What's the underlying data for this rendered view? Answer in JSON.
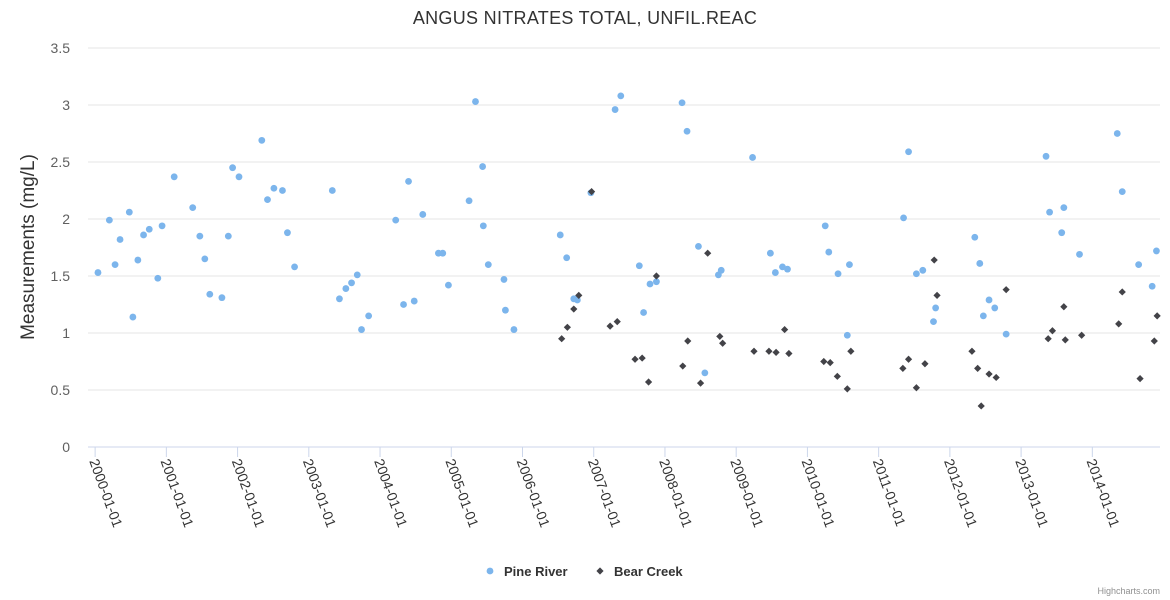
{
  "chart_data": {
    "type": "scatter",
    "title": "ANGUS NITRATES TOTAL, UNFIL.REAC",
    "ylabel": "Measurements (mg/L)",
    "xlabel": "",
    "ylim": [
      0,
      3.5
    ],
    "yticks": [
      "0",
      "0.5",
      "1",
      "1.5",
      "2",
      "2.5",
      "3",
      "3.5"
    ],
    "xlim": [
      1999.9,
      2014.95
    ],
    "xticks": [
      {
        "label": "2000-01-01",
        "x": 2000
      },
      {
        "label": "2001-01-01",
        "x": 2001
      },
      {
        "label": "2002-01-01",
        "x": 2002
      },
      {
        "label": "2003-01-01",
        "x": 2003
      },
      {
        "label": "2004-01-01",
        "x": 2004
      },
      {
        "label": "2005-01-01",
        "x": 2005
      },
      {
        "label": "2006-01-01",
        "x": 2006
      },
      {
        "label": "2007-01-01",
        "x": 2007
      },
      {
        "label": "2008-01-01",
        "x": 2008
      },
      {
        "label": "2009-01-01",
        "x": 2009
      },
      {
        "label": "2010-01-01",
        "x": 2010
      },
      {
        "label": "2011-01-01",
        "x": 2011
      },
      {
        "label": "2012-01-01",
        "x": 2012
      },
      {
        "label": "2013-01-01",
        "x": 2013
      },
      {
        "label": "2014-01-01",
        "x": 2014
      }
    ],
    "grid": true,
    "legend_position": "bottom-center",
    "series": [
      {
        "name": "Pine River",
        "color": "#7cb5ec",
        "marker": "circle",
        "points": [
          [
            2000.04,
            1.53
          ],
          [
            2000.2,
            1.99
          ],
          [
            2000.28,
            1.6
          ],
          [
            2000.35,
            1.82
          ],
          [
            2000.48,
            2.06
          ],
          [
            2000.53,
            1.14
          ],
          [
            2000.6,
            1.64
          ],
          [
            2000.68,
            1.86
          ],
          [
            2000.76,
            1.91
          ],
          [
            2000.88,
            1.48
          ],
          [
            2000.94,
            1.94
          ],
          [
            2001.11,
            2.37
          ],
          [
            2001.37,
            2.1
          ],
          [
            2001.47,
            1.85
          ],
          [
            2001.54,
            1.65
          ],
          [
            2001.61,
            1.34
          ],
          [
            2001.78,
            1.31
          ],
          [
            2001.87,
            1.85
          ],
          [
            2001.93,
            2.45
          ],
          [
            2002.02,
            2.37
          ],
          [
            2002.34,
            2.69
          ],
          [
            2002.42,
            2.17
          ],
          [
            2002.51,
            2.27
          ],
          [
            2002.63,
            2.25
          ],
          [
            2002.7,
            1.88
          ],
          [
            2002.8,
            1.58
          ],
          [
            2003.33,
            2.25
          ],
          [
            2003.43,
            1.3
          ],
          [
            2003.52,
            1.39
          ],
          [
            2003.6,
            1.44
          ],
          [
            2003.68,
            1.51
          ],
          [
            2003.74,
            1.03
          ],
          [
            2003.84,
            1.15
          ],
          [
            2004.22,
            1.99
          ],
          [
            2004.33,
            1.25
          ],
          [
            2004.4,
            2.33
          ],
          [
            2004.48,
            1.28
          ],
          [
            2004.6,
            2.04
          ],
          [
            2004.82,
            1.7
          ],
          [
            2004.88,
            1.7
          ],
          [
            2004.96,
            1.42
          ],
          [
            2005.25,
            2.16
          ],
          [
            2005.34,
            3.03
          ],
          [
            2005.44,
            2.46
          ],
          [
            2005.45,
            1.94
          ],
          [
            2005.52,
            1.6
          ],
          [
            2005.74,
            1.47
          ],
          [
            2005.76,
            1.2
          ],
          [
            2005.88,
            1.03
          ],
          [
            2006.53,
            1.86
          ],
          [
            2006.62,
            1.66
          ],
          [
            2006.72,
            1.3
          ],
          [
            2006.77,
            1.29
          ],
          [
            2006.96,
            2.23
          ],
          [
            2007.3,
            2.96
          ],
          [
            2007.38,
            3.08
          ],
          [
            2007.64,
            1.59
          ],
          [
            2007.7,
            1.18
          ],
          [
            2007.79,
            1.43
          ],
          [
            2007.88,
            1.45
          ],
          [
            2008.24,
            3.02
          ],
          [
            2008.31,
            2.77
          ],
          [
            2008.47,
            1.76
          ],
          [
            2008.56,
            0.65
          ],
          [
            2008.75,
            1.51
          ],
          [
            2008.79,
            1.55
          ],
          [
            2009.23,
            2.54
          ],
          [
            2009.48,
            1.7
          ],
          [
            2009.55,
            1.53
          ],
          [
            2009.65,
            1.58
          ],
          [
            2009.72,
            1.56
          ],
          [
            2010.25,
            1.94
          ],
          [
            2010.3,
            1.71
          ],
          [
            2010.43,
            1.52
          ],
          [
            2010.56,
            0.98
          ],
          [
            2010.59,
            1.6
          ],
          [
            2011.35,
            2.01
          ],
          [
            2011.42,
            2.59
          ],
          [
            2011.53,
            1.52
          ],
          [
            2011.62,
            1.55
          ],
          [
            2011.77,
            1.1
          ],
          [
            2011.8,
            1.22
          ],
          [
            2012.35,
            1.84
          ],
          [
            2012.42,
            1.61
          ],
          [
            2012.47,
            1.15
          ],
          [
            2012.55,
            1.29
          ],
          [
            2012.63,
            1.22
          ],
          [
            2012.79,
            0.99
          ],
          [
            2013.35,
            2.55
          ],
          [
            2013.4,
            2.06
          ],
          [
            2013.57,
            1.88
          ],
          [
            2013.6,
            2.1
          ],
          [
            2013.82,
            1.69
          ],
          [
            2014.35,
            2.75
          ],
          [
            2014.42,
            2.24
          ],
          [
            2014.65,
            1.6
          ],
          [
            2014.84,
            1.41
          ],
          [
            2014.9,
            1.72
          ]
        ]
      },
      {
        "name": "Bear Creek",
        "color": "#434348",
        "marker": "diamond",
        "points": [
          [
            2006.55,
            0.95
          ],
          [
            2006.63,
            1.05
          ],
          [
            2006.72,
            1.21
          ],
          [
            2006.79,
            1.33
          ],
          [
            2006.97,
            2.24
          ],
          [
            2007.23,
            1.06
          ],
          [
            2007.33,
            1.1
          ],
          [
            2007.58,
            0.77
          ],
          [
            2007.68,
            0.78
          ],
          [
            2007.77,
            0.57
          ],
          [
            2007.88,
            1.5
          ],
          [
            2008.25,
            0.71
          ],
          [
            2008.32,
            0.93
          ],
          [
            2008.5,
            0.56
          ],
          [
            2008.6,
            1.7
          ],
          [
            2008.77,
            0.97
          ],
          [
            2008.81,
            0.91
          ],
          [
            2009.25,
            0.84
          ],
          [
            2009.46,
            0.84
          ],
          [
            2009.56,
            0.83
          ],
          [
            2009.68,
            1.03
          ],
          [
            2009.74,
            0.82
          ],
          [
            2010.23,
            0.75
          ],
          [
            2010.32,
            0.74
          ],
          [
            2010.42,
            0.62
          ],
          [
            2010.56,
            0.51
          ],
          [
            2010.61,
            0.84
          ],
          [
            2011.34,
            0.69
          ],
          [
            2011.42,
            0.77
          ],
          [
            2011.53,
            0.52
          ],
          [
            2011.65,
            0.73
          ],
          [
            2011.78,
            1.64
          ],
          [
            2011.82,
            1.33
          ],
          [
            2012.31,
            0.84
          ],
          [
            2012.39,
            0.69
          ],
          [
            2012.44,
            0.36
          ],
          [
            2012.55,
            0.64
          ],
          [
            2012.65,
            0.61
          ],
          [
            2012.79,
            1.38
          ],
          [
            2013.38,
            0.95
          ],
          [
            2013.44,
            1.02
          ],
          [
            2013.6,
            1.23
          ],
          [
            2013.62,
            0.94
          ],
          [
            2013.85,
            0.98
          ],
          [
            2014.37,
            1.08
          ],
          [
            2014.42,
            1.36
          ],
          [
            2014.67,
            0.6
          ],
          [
            2014.87,
            0.93
          ],
          [
            2014.91,
            1.15
          ]
        ]
      }
    ]
  },
  "credits": "Highcharts.com"
}
